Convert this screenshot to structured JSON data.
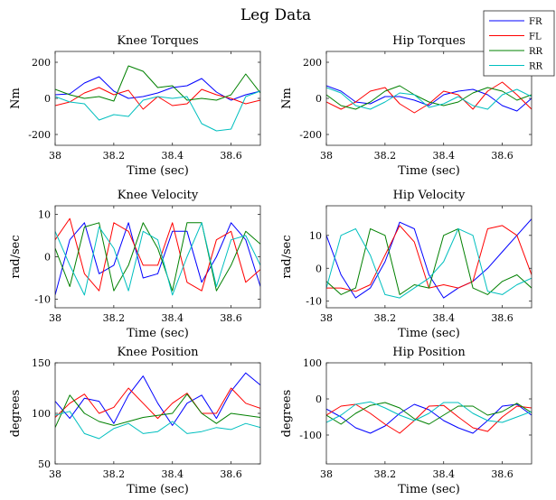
{
  "figure_title": "Leg Data",
  "colors": {
    "FR": "#0000ff",
    "FL": "#ff0000",
    "RR": "#008000",
    "RR_2": "#00bfbf"
  },
  "legend": {
    "placement": "top-right",
    "entries": [
      "FR",
      "FL",
      "RR",
      "RR"
    ]
  },
  "chart_data": [
    {
      "type": "line",
      "title": "Knee Torques",
      "xlabel": "Time (sec)",
      "ylabel": "Nm",
      "xlim": [
        38,
        38.7
      ],
      "ylim": [
        -260,
        260
      ],
      "xticks": [
        38,
        38.2,
        38.4,
        38.6
      ],
      "xtick_labels": [
        "38",
        "38.2",
        "38.4",
        "38.6"
      ],
      "yticks": [
        -200,
        0,
        200
      ],
      "ytick_labels": [
        "-200",
        "0",
        "200"
      ],
      "x": [
        38.0,
        38.05,
        38.1,
        38.15,
        38.2,
        38.25,
        38.3,
        38.35,
        38.4,
        38.45,
        38.5,
        38.55,
        38.6,
        38.65,
        38.7
      ],
      "series": [
        {
          "name": "FR",
          "values": [
            20,
            25,
            85,
            120,
            40,
            0,
            10,
            30,
            60,
            70,
            110,
            35,
            -10,
            20,
            40
          ]
        },
        {
          "name": "FL",
          "values": [
            -40,
            -20,
            30,
            60,
            20,
            45,
            -60,
            10,
            -40,
            -30,
            50,
            20,
            0,
            -30,
            -10
          ]
        },
        {
          "name": "RR",
          "values": [
            50,
            20,
            0,
            10,
            -15,
            180,
            150,
            60,
            70,
            -10,
            0,
            -10,
            20,
            135,
            30
          ]
        },
        {
          "name": "RR",
          "values": [
            10,
            -20,
            -30,
            -120,
            -90,
            -100,
            -10,
            10,
            0,
            10,
            -140,
            -180,
            -170,
            10,
            40
          ]
        }
      ]
    },
    {
      "type": "line",
      "title": "Hip Torques",
      "xlabel": "Time (sec)",
      "ylabel": "Nm",
      "xlim": [
        38,
        38.7
      ],
      "ylim": [
        -260,
        260
      ],
      "xticks": [
        38,
        38.2,
        38.4,
        38.6
      ],
      "xtick_labels": [
        "38",
        "38.2",
        "38.4",
        "38.6"
      ],
      "yticks": [
        -200,
        0,
        200
      ],
      "ytick_labels": [
        "-200",
        "0",
        "200"
      ],
      "x": [
        38.0,
        38.05,
        38.1,
        38.15,
        38.2,
        38.25,
        38.3,
        38.35,
        38.4,
        38.45,
        38.5,
        38.55,
        38.6,
        38.65,
        38.7
      ],
      "series": [
        {
          "name": "FR",
          "values": [
            70,
            40,
            -20,
            -30,
            10,
            10,
            -10,
            -40,
            20,
            40,
            50,
            20,
            -40,
            -70,
            0
          ]
        },
        {
          "name": "FL",
          "values": [
            -20,
            -60,
            -20,
            40,
            60,
            -30,
            -80,
            -30,
            40,
            20,
            -60,
            40,
            90,
            20,
            -60
          ]
        },
        {
          "name": "RR",
          "values": [
            20,
            -40,
            -60,
            -20,
            40,
            70,
            20,
            -20,
            -40,
            -20,
            30,
            60,
            40,
            -10,
            20
          ]
        },
        {
          "name": "RR",
          "values": [
            60,
            30,
            -40,
            -60,
            -20,
            30,
            20,
            -50,
            -30,
            10,
            -40,
            -60,
            20,
            50,
            10
          ]
        }
      ]
    },
    {
      "type": "line",
      "title": "Knee Velocity",
      "xlabel": "Time (sec)",
      "ylabel": "rad/sec",
      "xlim": [
        38,
        38.7
      ],
      "ylim": [
        -12,
        12
      ],
      "xticks": [
        38,
        38.2,
        38.4,
        38.6
      ],
      "xtick_labels": [
        "38",
        "38.2",
        "38.4",
        "38.6"
      ],
      "yticks": [
        -10,
        0,
        10
      ],
      "ytick_labels": [
        "-10",
        "0",
        "10"
      ],
      "x": [
        38.0,
        38.05,
        38.1,
        38.15,
        38.2,
        38.25,
        38.3,
        38.35,
        38.4,
        38.45,
        38.5,
        38.55,
        38.6,
        38.65,
        38.7
      ],
      "series": [
        {
          "name": "FR",
          "values": [
            -9,
            4,
            8,
            -4,
            -2,
            8,
            -5,
            -4,
            6,
            6,
            -6,
            0,
            8,
            4,
            -7
          ]
        },
        {
          "name": "FL",
          "values": [
            4,
            9,
            -4,
            -8,
            8,
            6,
            -2,
            -2,
            8,
            -6,
            -8,
            4,
            6,
            -6,
            -3
          ]
        },
        {
          "name": "RR",
          "values": [
            2,
            -7,
            7,
            8,
            -8,
            -2,
            8,
            2,
            -8,
            8,
            8,
            -8,
            -2,
            6,
            3
          ]
        },
        {
          "name": "RR",
          "values": [
            6,
            -2,
            -9,
            7,
            2,
            -8,
            6,
            4,
            -9,
            0,
            8,
            -7,
            4,
            5,
            -2
          ]
        }
      ]
    },
    {
      "type": "line",
      "title": "Hip Velocity",
      "xlabel": "Time (sec)",
      "ylabel": "rad/sec",
      "xlim": [
        38,
        38.7
      ],
      "ylim": [
        -12,
        19
      ],
      "xticks": [
        38,
        38.2,
        38.4,
        38.6
      ],
      "xtick_labels": [
        "38",
        "38.2",
        "38.4",
        "38.6"
      ],
      "yticks": [
        -10,
        0,
        10
      ],
      "ytick_labels": [
        "-10",
        "0",
        "10"
      ],
      "x": [
        38.0,
        38.05,
        38.1,
        38.15,
        38.2,
        38.25,
        38.3,
        38.35,
        38.4,
        38.45,
        38.5,
        38.55,
        38.6,
        38.65,
        38.7
      ],
      "series": [
        {
          "name": "FR",
          "values": [
            10,
            -2,
            -9,
            -6,
            2,
            14,
            12,
            -2,
            -9,
            -6,
            -4,
            0,
            5,
            10,
            15
          ]
        },
        {
          "name": "FL",
          "values": [
            -6,
            -6,
            -7,
            -5,
            4,
            13,
            8,
            -6,
            -5,
            -6,
            -4,
            12,
            13,
            10,
            -2
          ]
        },
        {
          "name": "RR",
          "values": [
            -4,
            -8,
            -6,
            12,
            10,
            -8,
            -5,
            -6,
            10,
            12,
            -6,
            -8,
            -4,
            -2,
            -6
          ]
        },
        {
          "name": "RR",
          "values": [
            -6,
            10,
            12,
            4,
            -8,
            -9,
            -6,
            -3,
            2,
            12,
            10,
            -7,
            -8,
            -5,
            -3
          ]
        }
      ]
    },
    {
      "type": "line",
      "title": "Knee Position",
      "xlabel": "Time (sec)",
      "ylabel": "degrees",
      "xlim": [
        38,
        38.7
      ],
      "ylim": [
        50,
        150
      ],
      "xticks": [
        38,
        38.2,
        38.4,
        38.6
      ],
      "xtick_labels": [
        "38",
        "38.2",
        "38.4",
        "38.6"
      ],
      "yticks": [
        50,
        100,
        150
      ],
      "ytick_labels": [
        "50",
        "100",
        "150"
      ],
      "x": [
        38.0,
        38.05,
        38.1,
        38.15,
        38.2,
        38.25,
        38.3,
        38.35,
        38.4,
        38.45,
        38.5,
        38.55,
        38.6,
        38.65,
        38.7
      ],
      "series": [
        {
          "name": "FR",
          "values": [
            112,
            95,
            115,
            112,
            90,
            118,
            137,
            110,
            88,
            110,
            118,
            95,
            122,
            140,
            128
          ]
        },
        {
          "name": "FL",
          "values": [
            96,
            110,
            119,
            100,
            106,
            125,
            110,
            95,
            110,
            120,
            100,
            100,
            125,
            110,
            105
          ]
        },
        {
          "name": "RR",
          "values": [
            86,
            118,
            100,
            92,
            88,
            92,
            96,
            98,
            100,
            119,
            100,
            90,
            100,
            98,
            96
          ]
        },
        {
          "name": "RR",
          "values": [
            98,
            102,
            80,
            75,
            85,
            90,
            80,
            82,
            92,
            80,
            82,
            86,
            84,
            90,
            86
          ]
        }
      ]
    },
    {
      "type": "line",
      "title": "Hip Position",
      "xlabel": "Time (sec)",
      "ylabel": "degrees",
      "xlim": [
        38,
        38.7
      ],
      "ylim": [
        -180,
        100
      ],
      "xticks": [
        38,
        38.2,
        38.4,
        38.6
      ],
      "xtick_labels": [
        "38",
        "38.2",
        "38.4",
        "38.6"
      ],
      "yticks": [
        -100,
        0,
        100
      ],
      "ytick_labels": [
        "-100",
        "0",
        "100"
      ],
      "x": [
        38.0,
        38.05,
        38.1,
        38.15,
        38.2,
        38.25,
        38.3,
        38.35,
        38.4,
        38.45,
        38.5,
        38.55,
        38.6,
        38.65,
        38.7
      ],
      "series": [
        {
          "name": "FR",
          "values": [
            -28,
            -50,
            -80,
            -95,
            -75,
            -40,
            -15,
            -30,
            -60,
            -80,
            -95,
            -60,
            -20,
            -15,
            -45
          ]
        },
        {
          "name": "FL",
          "values": [
            -45,
            -20,
            -15,
            -40,
            -70,
            -95,
            -60,
            -20,
            -18,
            -50,
            -80,
            -90,
            -50,
            -20,
            -25
          ]
        },
        {
          "name": "RR",
          "values": [
            -45,
            -70,
            -40,
            -18,
            -10,
            -25,
            -55,
            -70,
            -45,
            -20,
            -20,
            -45,
            -35,
            -12,
            -38
          ]
        },
        {
          "name": "RR",
          "values": [
            -65,
            -45,
            -15,
            -8,
            -25,
            -45,
            -60,
            -40,
            -10,
            -10,
            -40,
            -60,
            -65,
            -50,
            -35
          ]
        }
      ]
    }
  ]
}
